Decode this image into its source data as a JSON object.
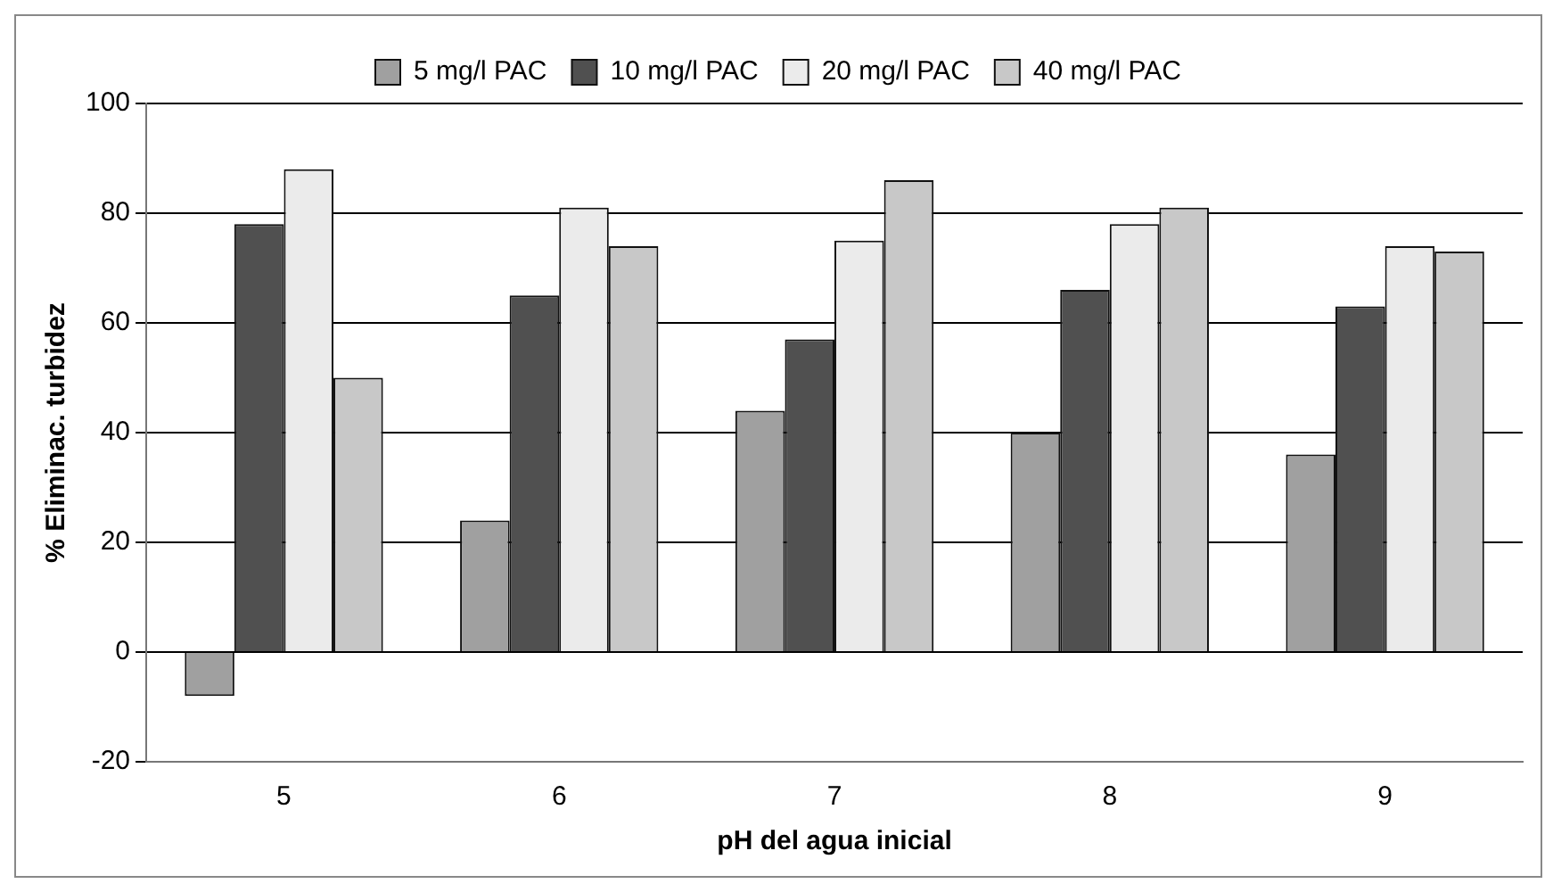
{
  "chart_data": {
    "type": "bar",
    "xlabel": "pH del agua inicial",
    "ylabel": "% Eliminac. turbidez",
    "categories": [
      "5",
      "6",
      "7",
      "8",
      "9"
    ],
    "series": [
      {
        "name": "5 mg/l PAC",
        "color": "#a0a0a0",
        "values": [
          -8,
          24,
          44,
          40,
          36
        ]
      },
      {
        "name": "10 mg/l PAC",
        "color": "#505050",
        "values": [
          78,
          65,
          57,
          66,
          63
        ]
      },
      {
        "name": "20 mg/l PAC",
        "color": "#ebebeb",
        "values": [
          88,
          81,
          75,
          78,
          74
        ]
      },
      {
        "name": "40 mg/l PAC",
        "color": "#c8c8c8",
        "values": [
          50,
          74,
          86,
          81,
          73
        ]
      }
    ],
    "ylim": [
      -20,
      100
    ],
    "yticks": [
      -20,
      0,
      20,
      40,
      60,
      80,
      100
    ],
    "grid": "y",
    "legend": "top"
  }
}
